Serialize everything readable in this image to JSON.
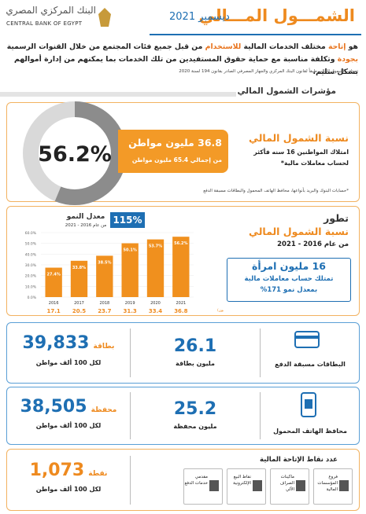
{
  "header": {
    "bank_ar": "البنك المركزي المصري",
    "bank_en": "CENTRAL BANK OF EGYPT",
    "title": "الشمـــول المـــالي",
    "date": "ديسمبر 2021"
  },
  "intro": {
    "segments": [
      {
        "text": "هو ",
        "color": "#222222"
      },
      {
        "text": "إتاحة",
        "color": "#e8731c"
      },
      {
        "text": " مختلف الخدمات المالية ",
        "color": "#222222"
      },
      {
        "text": "للاستخدام",
        "color": "#e8731c"
      },
      {
        "text": " من قبل جميع فئات المجتمع من خلال القنوات الرسمية ",
        "color": "#222222"
      },
      {
        "text": "بجودة",
        "color": "#e8731c"
      },
      {
        "text": " وتكلفة مناسبة مع حماية حقوق المستفيدين من تلك الخدمات بما يمكنهم من إدارة أموالهم بشكل سليم.",
        "color": "#222222"
      }
    ],
    "source": "تعريف الشمول المالي طبقاً لقانون البنك المركزي والجهاز المصرفي الصادر بقانون 194 لسنة 2020"
  },
  "indicators": {
    "heading": "مؤشرات الشمول المالي",
    "rate": {
      "value": 56.2,
      "label": "56.2%",
      "max": 100
    },
    "citizens": "36.8 مليون مواطن",
    "total": "من إجمالي 65.4 مليون مواطن",
    "rate_title": "نسبة الشمول المالي",
    "rate_desc_1": "امتلاك المواطنين 16 سنه فأكثر",
    "rate_desc_2": "لحساب معاملات مالية*",
    "footnote": "*حسابات البنوك والبريد بأنواعها، محافظ الهاتف المحمول والبطاقات مسبقة الدفع"
  },
  "evolution": {
    "title_1": "تطور",
    "title_2": "نسبة الشمول المالي",
    "period": "من عام 2016 - 2021",
    "women_1": "16 مليون امرأة",
    "women_2": "تمتلك حساب معاملات مالية",
    "women_3": "بمعدل نمو 171%",
    "chart_data": {
      "type": "bar",
      "growth_title": "معدل النمو",
      "growth_period": "من عام 2016 - 2021",
      "growth": "115%",
      "categories": [
        "2016",
        "2017",
        "2018",
        "2019",
        "2020",
        "2021"
      ],
      "values": [
        27.4,
        33.8,
        38.5,
        50.1,
        53.7,
        56.2
      ],
      "value_labels": [
        "27.4%",
        "33.8%",
        "38.5%",
        "50.1%",
        "53.7%",
        "56.2%"
      ],
      "color": "#f0901e",
      "citizens": [
        17.1,
        20.5,
        23.7,
        31.3,
        33.4,
        36.8
      ],
      "citizens_label": "عدد المواطنين (بالمليون)",
      "ylim": [
        0,
        60
      ],
      "yticks": [
        {
          "value": 0,
          "label": "0.0%"
        },
        {
          "value": 10,
          "label": "10.0%"
        },
        {
          "value": 20,
          "label": "20.0%"
        },
        {
          "value": 30,
          "label": "30.0%"
        },
        {
          "value": 40,
          "label": "40.0%"
        },
        {
          "value": 50,
          "label": "50.0%"
        },
        {
          "value": 60,
          "label": "60.0%"
        }
      ],
      "grid": true
    }
  },
  "prepaid": {
    "label": "البطاقات مسبقة الدفع",
    "total": "26.1",
    "total_unit": "مليون بطاقة",
    "per": "39,833",
    "per_unit": "بطاقة",
    "per_desc": "لكل 100 ألف مواطن"
  },
  "wallets": {
    "label": "محافظ الهاتف المحمول",
    "total": "25.2",
    "total_unit": "مليون محفظة",
    "per": "38,505",
    "per_unit": "محفظة",
    "per_desc": "لكل 100 ألف مواطن"
  },
  "access": {
    "label": "عدد نقاط الإتاحة المالية",
    "items": [
      "فروع المؤسسات المالية",
      "ماكينات الصراف الآلي",
      "نقاط البيع الإلكترونية",
      "مقدمي خدمات الدفع"
    ],
    "per": "1,073",
    "per_unit": "نقطة",
    "per_desc": "لكل 100 ألف مواطن"
  }
}
